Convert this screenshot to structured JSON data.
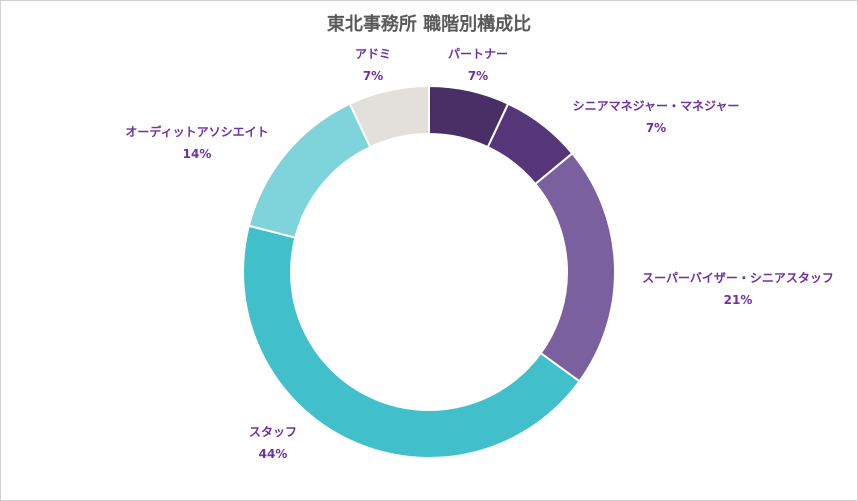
{
  "chart_data": {
    "type": "pie",
    "title": "東北事務所 職階別構成比",
    "donut": true,
    "label_color": "#7030a0",
    "slices": [
      {
        "label": "パートナー",
        "value": 7,
        "value_label": "7%",
        "color": "#4a2f66"
      },
      {
        "label": "シニアマネジャー・マネジャー",
        "value": 7,
        "value_label": "7%",
        "color": "#553679"
      },
      {
        "label": "スーパーバイザー・シニアスタッフ",
        "value": 21,
        "value_label": "21%",
        "color": "#7a609e"
      },
      {
        "label": "スタッフ",
        "value": 44,
        "value_label": "44%",
        "color": "#41bfca"
      },
      {
        "label": "オーディットアソシエイト",
        "value": 14,
        "value_label": "14%",
        "color": "#7fd3da"
      },
      {
        "label": "アドミ",
        "value": 7,
        "value_label": "7%",
        "color": "#e3e0dc"
      }
    ]
  }
}
